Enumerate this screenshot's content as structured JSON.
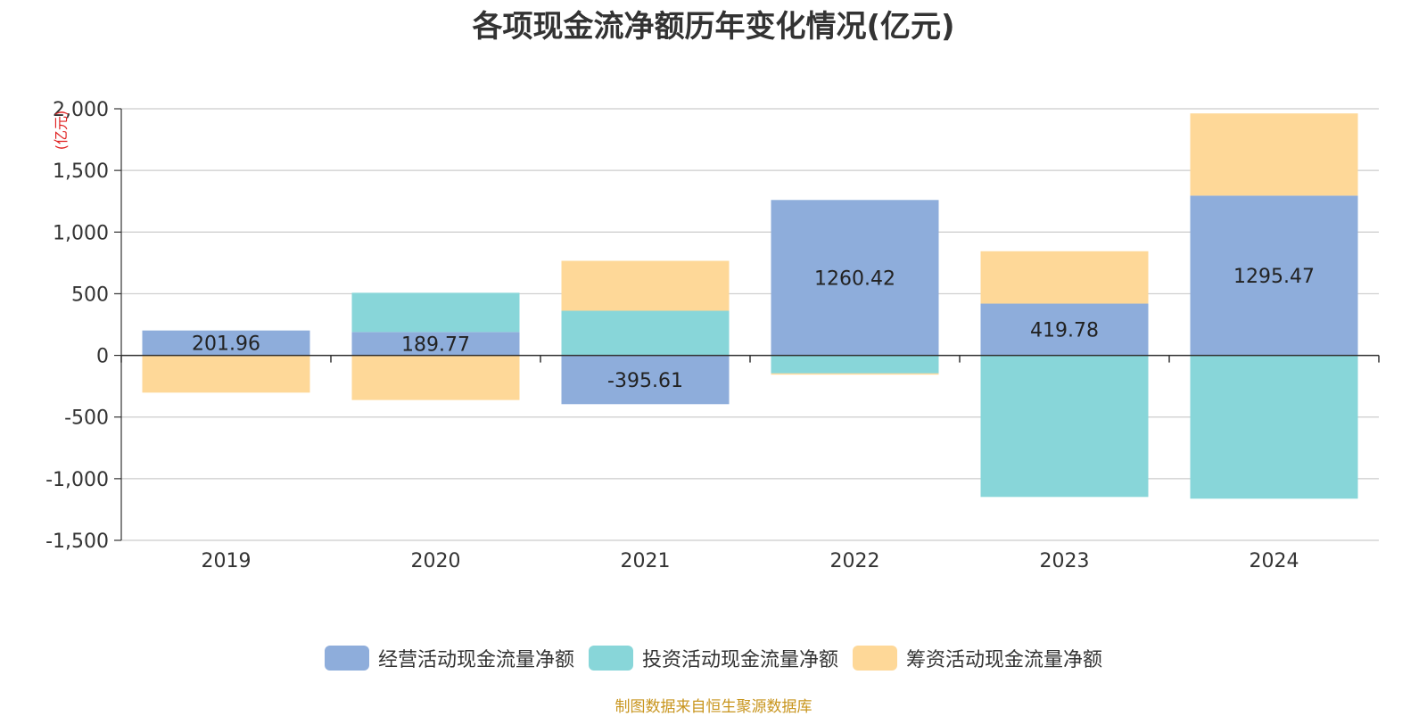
{
  "chart_data": {
    "type": "bar",
    "stacked": true,
    "title": "各项现金流净额历年变化情况(亿元)",
    "ylabel": "(亿元)",
    "categories": [
      "2019",
      "2020",
      "2021",
      "2022",
      "2023",
      "2024"
    ],
    "ylim": [
      -1500,
      2000
    ],
    "yticks": [
      2000,
      1500,
      1000,
      500,
      0,
      -500,
      -1000,
      -1500
    ],
    "ytick_labels": [
      "2,000",
      "1,500",
      "1,000",
      "500",
      "0",
      "-500",
      "-1,000",
      "-1,500"
    ],
    "grid": true,
    "legend_position": "bottom",
    "series": [
      {
        "name": "经营活动现金流量净额",
        "color": "#8eaddb",
        "values": [
          201.96,
          189.77,
          -395.61,
          1260.42,
          419.78,
          1295.47
        ],
        "labels": [
          "201.96",
          "189.77",
          "-395.61",
          "1260.42",
          "419.78",
          "1295.47"
        ]
      },
      {
        "name": "投资活动现金流量净额",
        "color": "#88d6d9",
        "values": [
          0,
          318,
          362,
          -146,
          -1148,
          -1162
        ]
      },
      {
        "name": "筹资活动现金流量净额",
        "color": "#fed898",
        "values": [
          -302,
          -362,
          405,
          -10,
          425,
          667
        ]
      }
    ]
  },
  "footer": {
    "source": "制图数据来自恒生聚源数据库"
  }
}
